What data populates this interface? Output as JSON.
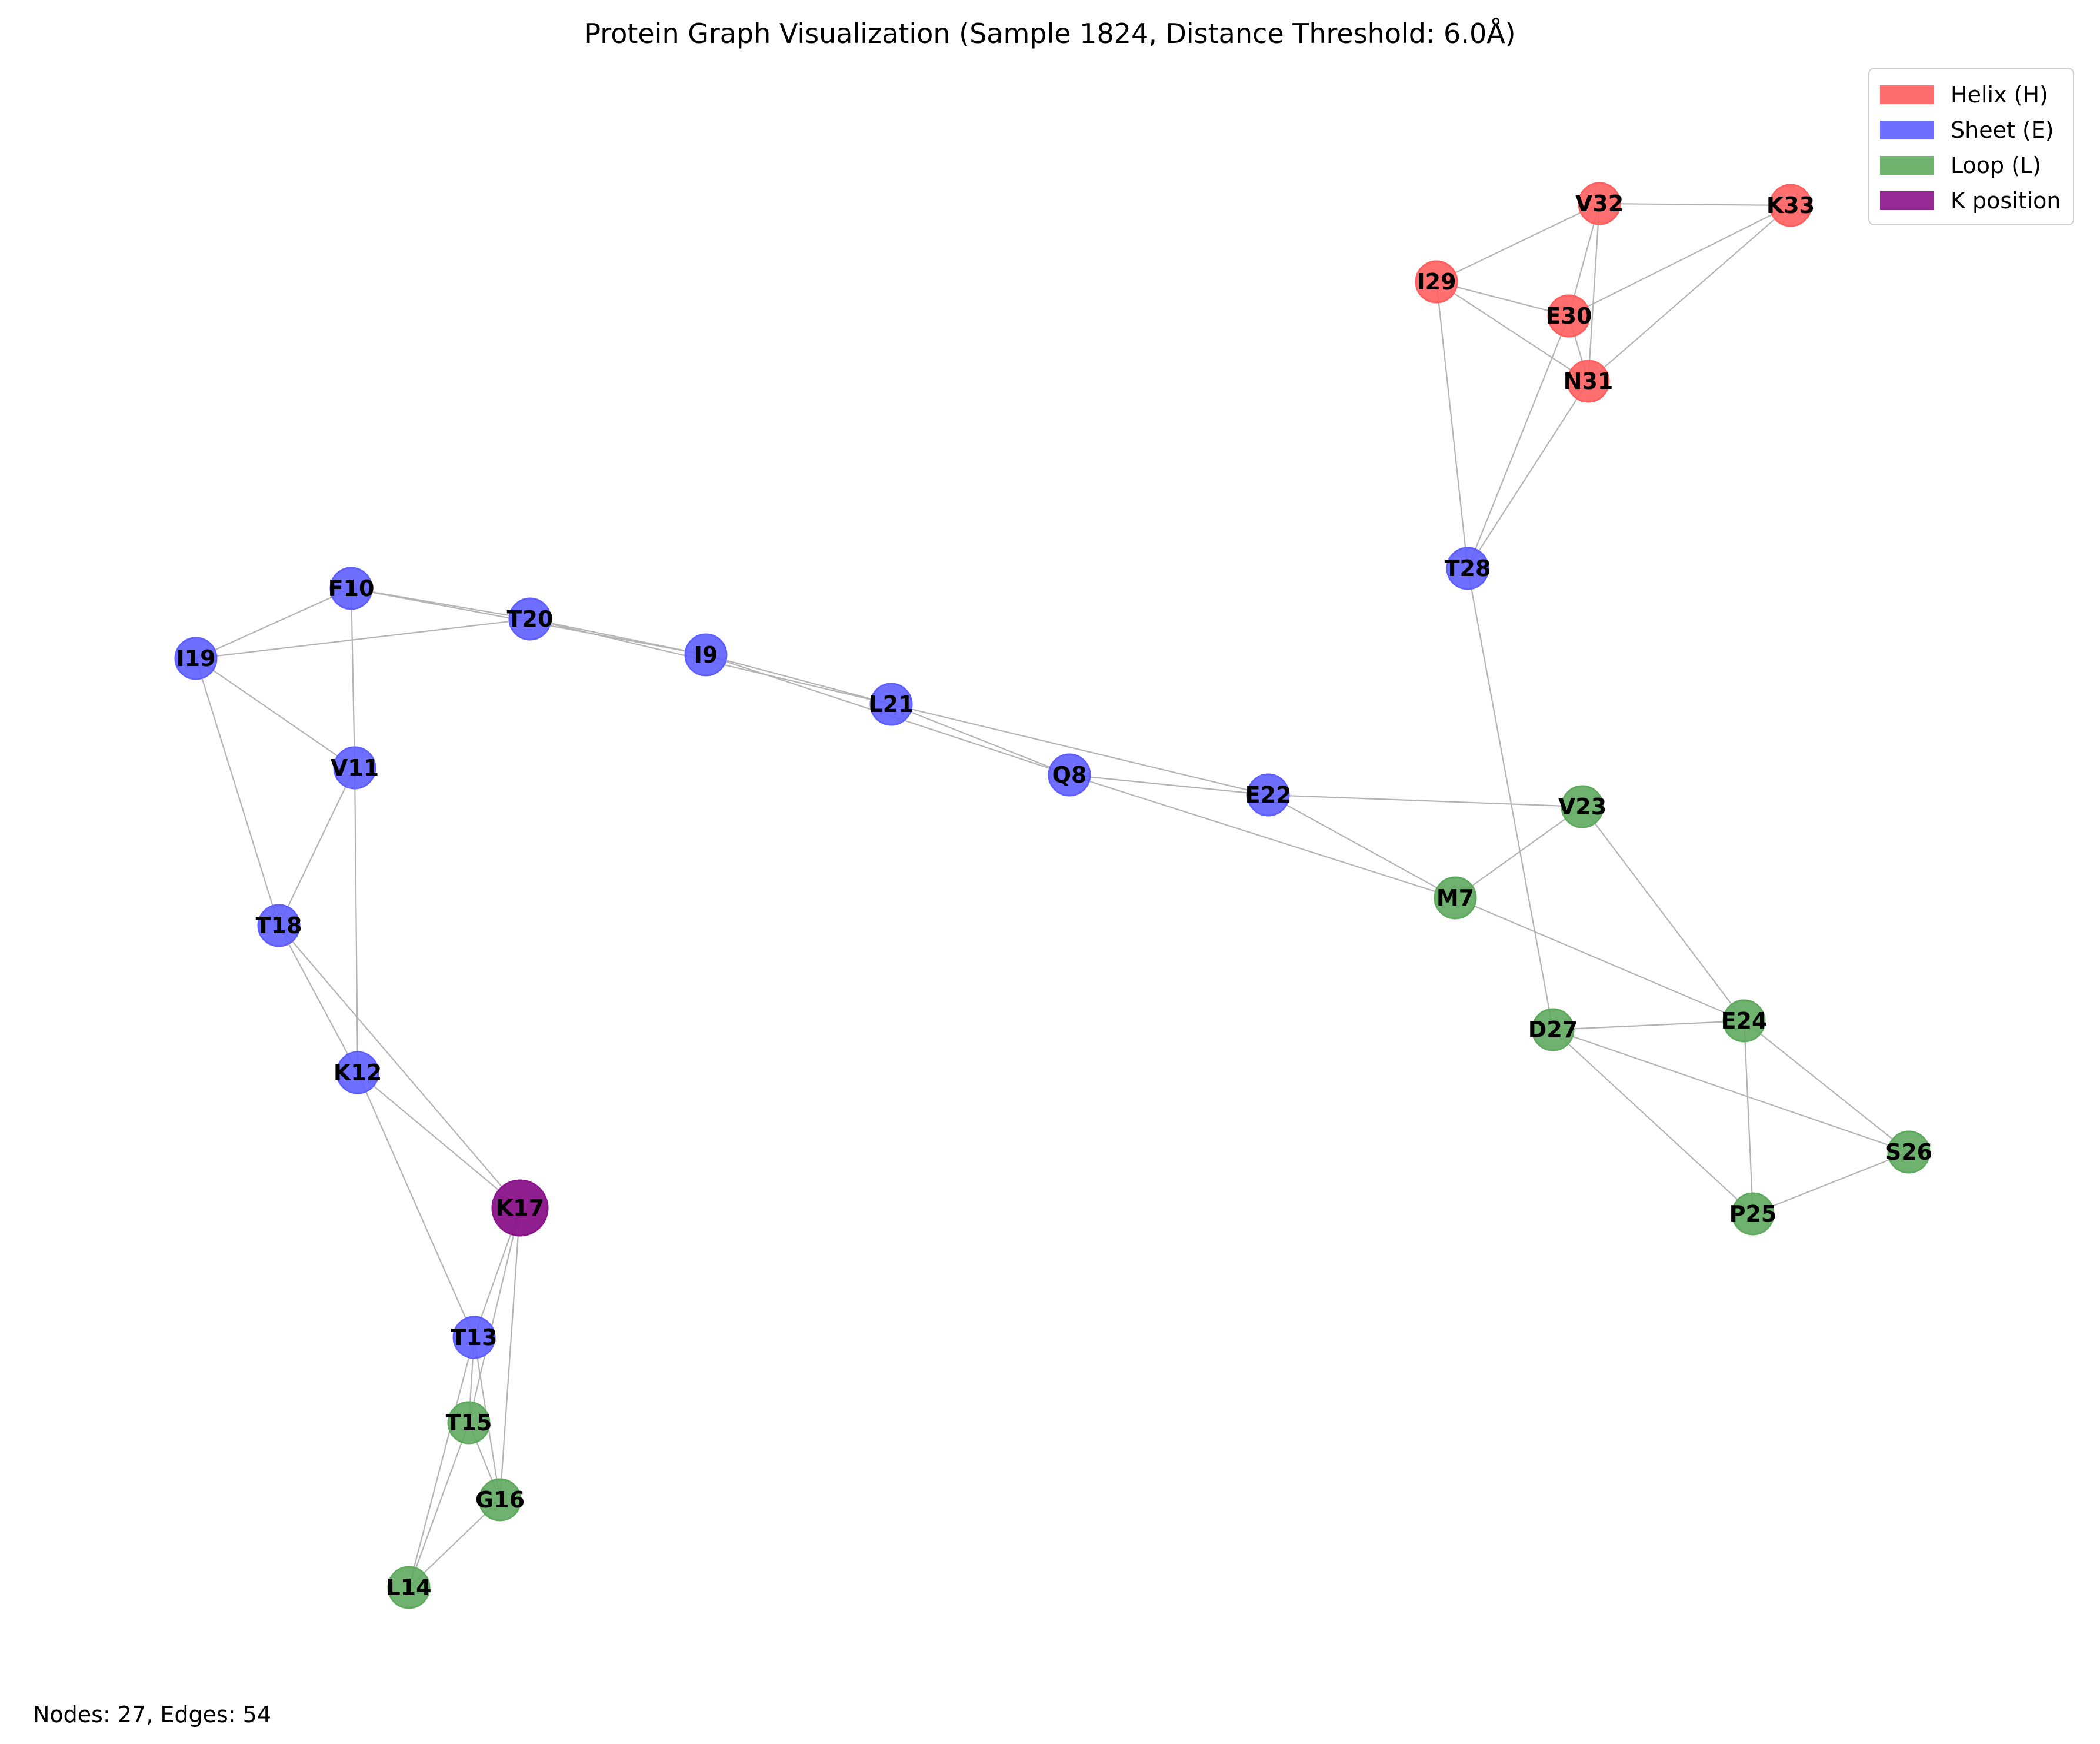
{
  "title": "Protein Graph Visualization (Sample 1824, Distance Threshold: 6.0Å)",
  "footer": "Nodes: 27, Edges: 54",
  "colors": {
    "helix": "#ff5f5f",
    "sheet": "#5f5fff",
    "loop": "#5faa5f",
    "k_position": "#8a148a",
    "edge": "#b4b4b4"
  },
  "legend": [
    {
      "label": "Helix (H)",
      "type": "helix"
    },
    {
      "label": "Sheet (E)",
      "type": "sheet"
    },
    {
      "label": "Loop (L)",
      "type": "loop"
    },
    {
      "label": "K position",
      "type": "k_position"
    }
  ],
  "nodes": [
    {
      "id": "M7",
      "type": "loop"
    },
    {
      "id": "Q8",
      "type": "sheet"
    },
    {
      "id": "I9",
      "type": "sheet"
    },
    {
      "id": "F10",
      "type": "sheet"
    },
    {
      "id": "V11",
      "type": "sheet"
    },
    {
      "id": "K12",
      "type": "sheet"
    },
    {
      "id": "T13",
      "type": "sheet"
    },
    {
      "id": "L14",
      "type": "loop"
    },
    {
      "id": "T15",
      "type": "loop"
    },
    {
      "id": "G16",
      "type": "loop"
    },
    {
      "id": "K17",
      "type": "k_position"
    },
    {
      "id": "T18",
      "type": "sheet"
    },
    {
      "id": "I19",
      "type": "sheet"
    },
    {
      "id": "T20",
      "type": "sheet"
    },
    {
      "id": "L21",
      "type": "sheet"
    },
    {
      "id": "E22",
      "type": "sheet"
    },
    {
      "id": "V23",
      "type": "loop"
    },
    {
      "id": "E24",
      "type": "loop"
    },
    {
      "id": "P25",
      "type": "loop"
    },
    {
      "id": "S26",
      "type": "loop"
    },
    {
      "id": "D27",
      "type": "loop"
    },
    {
      "id": "T28",
      "type": "sheet"
    },
    {
      "id": "I29",
      "type": "helix"
    },
    {
      "id": "E30",
      "type": "helix"
    },
    {
      "id": "N31",
      "type": "helix"
    },
    {
      "id": "V32",
      "type": "helix"
    },
    {
      "id": "K33",
      "type": "helix"
    }
  ],
  "edges": [
    [
      "V32",
      "K33"
    ],
    [
      "V32",
      "I29"
    ],
    [
      "V32",
      "E30"
    ],
    [
      "V32",
      "N31"
    ],
    [
      "K33",
      "E30"
    ],
    [
      "K33",
      "N31"
    ],
    [
      "I29",
      "E30"
    ],
    [
      "I29",
      "N31"
    ],
    [
      "I29",
      "T28"
    ],
    [
      "E30",
      "N31"
    ],
    [
      "E30",
      "T28"
    ],
    [
      "N31",
      "T28"
    ],
    [
      "T28",
      "D27"
    ],
    [
      "F10",
      "T20"
    ],
    [
      "F10",
      "I19"
    ],
    [
      "F10",
      "V11"
    ],
    [
      "F10",
      "I9"
    ],
    [
      "I19",
      "T20"
    ],
    [
      "I19",
      "V11"
    ],
    [
      "I19",
      "T18"
    ],
    [
      "T20",
      "I9"
    ],
    [
      "T20",
      "L21"
    ],
    [
      "I9",
      "L21"
    ],
    [
      "I9",
      "Q8"
    ],
    [
      "L21",
      "Q8"
    ],
    [
      "L21",
      "E22"
    ],
    [
      "Q8",
      "E22"
    ],
    [
      "Q8",
      "M7"
    ],
    [
      "E22",
      "V23"
    ],
    [
      "E22",
      "M7"
    ],
    [
      "V23",
      "M7"
    ],
    [
      "V23",
      "E24"
    ],
    [
      "M7",
      "E24"
    ],
    [
      "D27",
      "E24"
    ],
    [
      "D27",
      "S26"
    ],
    [
      "D27",
      "P25"
    ],
    [
      "E24",
      "S26"
    ],
    [
      "E24",
      "P25"
    ],
    [
      "S26",
      "P25"
    ],
    [
      "V11",
      "T18"
    ],
    [
      "V11",
      "K12"
    ],
    [
      "T18",
      "K12"
    ],
    [
      "T18",
      "K17"
    ],
    [
      "K12",
      "K17"
    ],
    [
      "K12",
      "T13"
    ],
    [
      "K17",
      "T13"
    ],
    [
      "K17",
      "T15"
    ],
    [
      "K17",
      "G16"
    ],
    [
      "T13",
      "T15"
    ],
    [
      "T13",
      "G16"
    ],
    [
      "T13",
      "L14"
    ],
    [
      "T15",
      "G16"
    ],
    [
      "T15",
      "L14"
    ],
    [
      "G16",
      "L14"
    ]
  ]
}
